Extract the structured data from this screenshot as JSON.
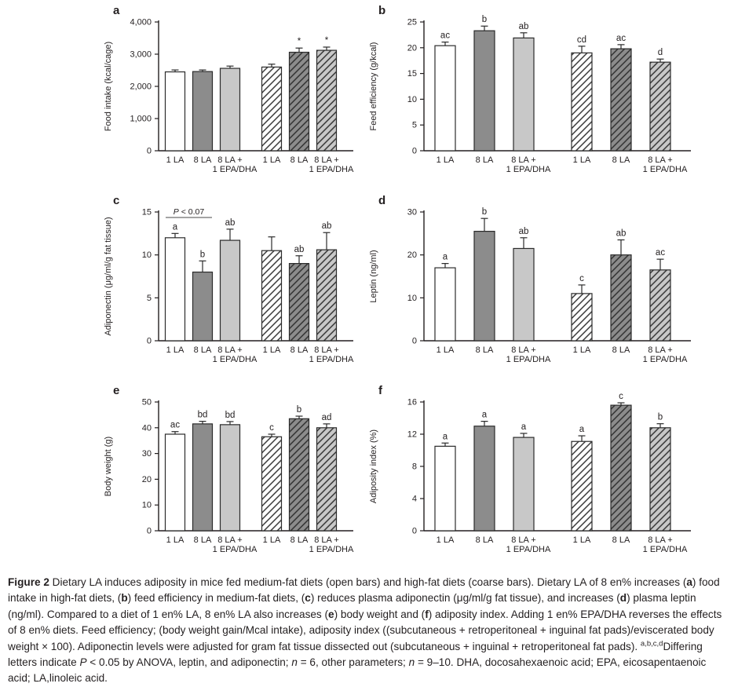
{
  "figure": {
    "colors": {
      "open": "#ffffff",
      "dark": "#8c8c8c",
      "light": "#c8c8c8",
      "hatch_line": "#2b2b2b",
      "axis": "#231f20"
    },
    "caption_segments": [
      {
        "style": "bold",
        "text": "Figure 2"
      },
      {
        "style": "normal",
        "text": " Dietary LA induces adiposity in mice fed medium-fat diets (open bars) and high-fat diets (coarse bars). Dietary LA of 8 en% increases ("
      },
      {
        "style": "bold",
        "text": "a"
      },
      {
        "style": "normal",
        "text": ") food intake in high-fat diets, ("
      },
      {
        "style": "bold",
        "text": "b"
      },
      {
        "style": "normal",
        "text": ") feed efficiency in medium-fat diets, ("
      },
      {
        "style": "bold",
        "text": "c"
      },
      {
        "style": "normal",
        "text": ") reduces plasma adiponectin (μg/ml/g fat tissue), and increases ("
      },
      {
        "style": "bold",
        "text": "d"
      },
      {
        "style": "normal",
        "text": ") plasma leptin (ng/ml). Compared to a diet of 1 en% LA, 8 en% LA also increases ("
      },
      {
        "style": "bold",
        "text": "e"
      },
      {
        "style": "normal",
        "text": ") body weight and ("
      },
      {
        "style": "bold",
        "text": "f"
      },
      {
        "style": "normal",
        "text": ") adiposity index. Adding 1 en% EPA/DHA reverses the effects of 8 en% diets. Feed efficiency; (body weight gain/Mcal intake), adiposity index ((subcutaneous + retroperitoneal + inguinal fat pads)/eviscerated body weight × 100). Adiponectin levels were adjusted for gram fat tissue dissected out (subcutaneous + inguinal + retroperitoneal fat pads). "
      },
      {
        "style": "sup",
        "text": "a,b,c,d"
      },
      {
        "style": "normal",
        "text": "Differing letters indicate "
      },
      {
        "style": "italic",
        "text": "P"
      },
      {
        "style": "normal",
        "text": " < 0.05 by ANOVA, leptin, and adiponectin; "
      },
      {
        "style": "italic",
        "text": "n"
      },
      {
        "style": "normal",
        "text": " = 6, other parameters; "
      },
      {
        "style": "italic",
        "text": "n"
      },
      {
        "style": "normal",
        "text": " = 9–10. DHA, docosahexaenoic acid; EPA, eicosapentaenoic acid; LA,linoleic acid."
      }
    ]
  },
  "chart_data": [
    {
      "type": "bar",
      "panel": "a",
      "ylabel": "Food intake (kcal/cage)",
      "ylim": [
        0,
        4000
      ],
      "yticks": [
        0,
        1000,
        2000,
        3000,
        4000
      ],
      "ytick_labels": [
        "0",
        "1,000",
        "2,000",
        "3,000",
        "4,000"
      ],
      "categories": [
        [
          "1 LA"
        ],
        [
          "8 LA"
        ],
        [
          "8 LA +",
          "1 EPA/DHA"
        ],
        [
          "1 LA"
        ],
        [
          "8 LA"
        ],
        [
          "8 LA +",
          "1 EPA/DHA"
        ]
      ],
      "values": [
        2450,
        2460,
        2560,
        2600,
        3060,
        3120
      ],
      "errors": [
        60,
        50,
        70,
        90,
        130,
        100
      ],
      "sig_labels": [
        "",
        "",
        "",
        "",
        "*",
        "*"
      ],
      "bar_styles": [
        "open",
        "dark",
        "light",
        "open-hatch",
        "dark-hatch",
        "light-hatch"
      ],
      "annotation": null
    },
    {
      "type": "bar",
      "panel": "b",
      "ylabel": "Feed efficiency (g/kcal)",
      "ylim": [
        0,
        25
      ],
      "yticks": [
        0,
        5,
        10,
        15,
        20,
        25
      ],
      "ytick_labels": [
        "0",
        "5",
        "10",
        "15",
        "20",
        "25"
      ],
      "categories": [
        [
          "1 LA"
        ],
        [
          "8 LA"
        ],
        [
          "8 LA +",
          "1 EPA/DHA"
        ],
        [
          "1 LA"
        ],
        [
          "8 LA"
        ],
        [
          "8 LA +",
          "1 EPA/DHA"
        ]
      ],
      "values": [
        20.4,
        23.3,
        21.9,
        19.0,
        19.8,
        17.2
      ],
      "errors": [
        0.7,
        0.9,
        1.0,
        1.3,
        0.8,
        0.6
      ],
      "sig_labels": [
        "ac",
        "b",
        "ab",
        "cd",
        "ac",
        "d"
      ],
      "bar_styles": [
        "open",
        "dark",
        "light",
        "open-hatch",
        "dark-hatch",
        "light-hatch"
      ],
      "annotation": null
    },
    {
      "type": "bar",
      "panel": "c",
      "ylabel": "Adiponectin (μg/ml/g fat tissue)",
      "ylim": [
        0,
        15
      ],
      "yticks": [
        0,
        5,
        10,
        15
      ],
      "ytick_labels": [
        "0",
        "5",
        "10",
        "15"
      ],
      "categories": [
        [
          "1 LA"
        ],
        [
          "8 LA"
        ],
        [
          "8 LA +",
          "1 EPA/DHA"
        ],
        [
          "1 LA"
        ],
        [
          "8 LA"
        ],
        [
          "8 LA +",
          "1 EPA/DHA"
        ]
      ],
      "values": [
        12.0,
        8.0,
        11.7,
        10.5,
        9.0,
        10.6
      ],
      "errors": [
        0.5,
        1.3,
        1.3,
        1.6,
        0.9,
        2.0
      ],
      "sig_labels": [
        "a",
        "b",
        "ab",
        "",
        "ab",
        "ab"
      ],
      "bar_styles": [
        "open",
        "dark",
        "light",
        "open-hatch",
        "dark-hatch",
        "light-hatch"
      ],
      "annotation": {
        "italic": "P",
        "rest": " < 0.07",
        "bar_from": 0,
        "bar_to": 1
      }
    },
    {
      "type": "bar",
      "panel": "d",
      "ylabel": "Leptin (ng/ml)",
      "ylim": [
        0,
        30
      ],
      "yticks": [
        0,
        10,
        20,
        30
      ],
      "ytick_labels": [
        "0",
        "10",
        "20",
        "30"
      ],
      "categories": [
        [
          "1 LA"
        ],
        [
          "8 LA"
        ],
        [
          "8 LA +",
          "1 EPA/DHA"
        ],
        [
          "1 LA"
        ],
        [
          "8 LA"
        ],
        [
          "8 LA +",
          "1 EPA/DHA"
        ]
      ],
      "values": [
        17.0,
        25.5,
        21.5,
        11.0,
        20.0,
        16.5
      ],
      "errors": [
        1.0,
        3.0,
        2.5,
        2.0,
        3.5,
        2.5
      ],
      "sig_labels": [
        "a",
        "b",
        "ab",
        "c",
        "ab",
        "ac"
      ],
      "bar_styles": [
        "open",
        "dark",
        "light",
        "open-hatch",
        "dark-hatch",
        "light-hatch"
      ],
      "annotation": null
    },
    {
      "type": "bar",
      "panel": "e",
      "ylabel": "Body weight (g)",
      "ylim": [
        0,
        50
      ],
      "yticks": [
        0,
        10,
        20,
        30,
        40,
        50
      ],
      "ytick_labels": [
        "0",
        "10",
        "20",
        "30",
        "40",
        "50"
      ],
      "categories": [
        [
          "1 LA"
        ],
        [
          "8 LA"
        ],
        [
          "8 LA +",
          "1 EPA/DHA"
        ],
        [
          "1 LA"
        ],
        [
          "8 LA"
        ],
        [
          "8 LA +",
          "1 EPA/DHA"
        ]
      ],
      "values": [
        37.5,
        41.5,
        41.2,
        36.5,
        43.5,
        40.0
      ],
      "errors": [
        1.0,
        1.0,
        1.2,
        1.0,
        1.0,
        1.5
      ],
      "sig_labels": [
        "ac",
        "bd",
        "bd",
        "c",
        "b",
        "ad"
      ],
      "bar_styles": [
        "open",
        "dark",
        "light",
        "open-hatch",
        "dark-hatch",
        "light-hatch"
      ],
      "annotation": null
    },
    {
      "type": "bar",
      "panel": "f",
      "ylabel": "Adiposity index (%)",
      "ylim": [
        0,
        16
      ],
      "yticks": [
        0,
        4,
        8,
        12,
        16
      ],
      "ytick_labels": [
        "0",
        "4",
        "8",
        "12",
        "16"
      ],
      "categories": [
        [
          "1 LA"
        ],
        [
          "8 LA"
        ],
        [
          "8 LA +",
          "1 EPA/DHA"
        ],
        [
          "1 LA"
        ],
        [
          "8 LA"
        ],
        [
          "8 LA +",
          "1 EPA/DHA"
        ]
      ],
      "values": [
        10.5,
        13.0,
        11.6,
        11.1,
        15.6,
        12.8
      ],
      "errors": [
        0.4,
        0.6,
        0.5,
        0.7,
        0.3,
        0.5
      ],
      "sig_labels": [
        "a",
        "a",
        "a",
        "a",
        "c",
        "b"
      ],
      "bar_styles": [
        "open",
        "dark",
        "light",
        "open-hatch",
        "dark-hatch",
        "light-hatch"
      ],
      "annotation": null
    }
  ]
}
